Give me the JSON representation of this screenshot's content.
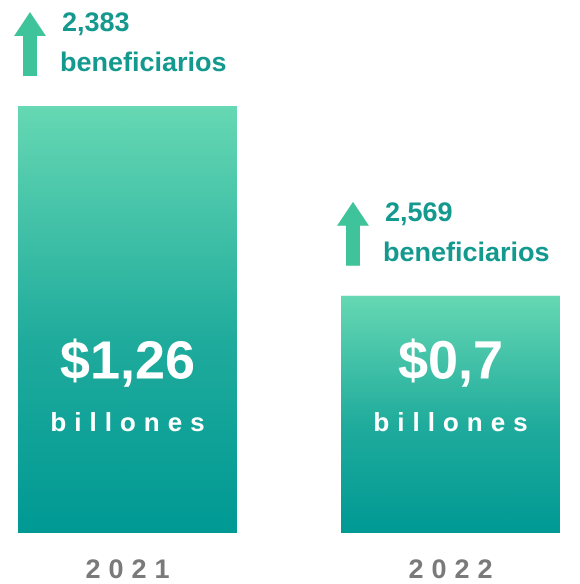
{
  "chart_data": {
    "type": "bar",
    "categories": [
      "2021",
      "2022"
    ],
    "values": [
      1.26,
      0.7
    ],
    "value_labels": [
      "$1,26",
      "$0,7"
    ],
    "value_unit": "billones",
    "annotations": [
      {
        "count": "2,383",
        "text": "beneficiarios"
      },
      {
        "count": "2,569",
        "text": "beneficiarios"
      }
    ],
    "color": "#009994"
  }
}
